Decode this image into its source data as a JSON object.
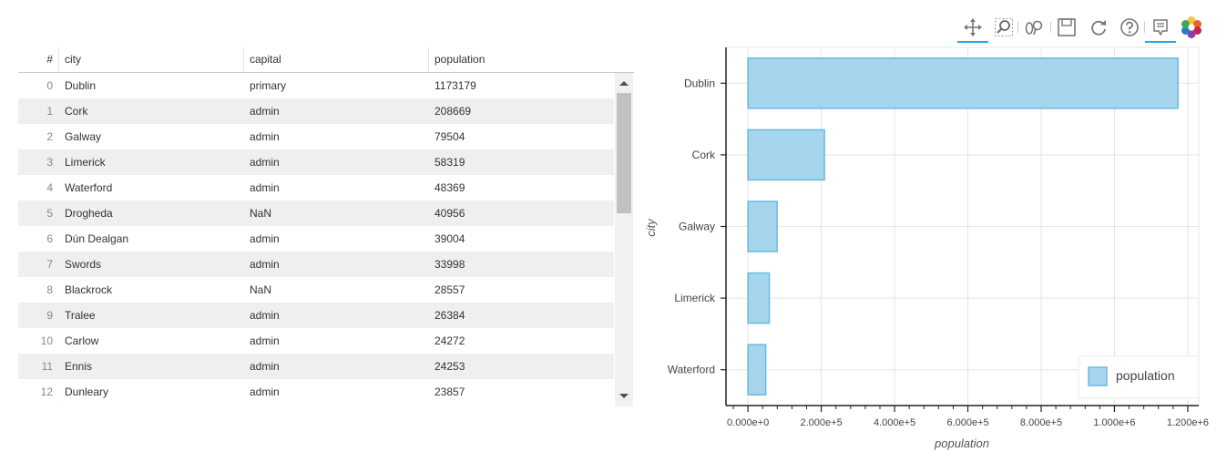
{
  "table": {
    "columns": [
      "#",
      "city",
      "capital",
      "population"
    ],
    "rows": [
      {
        "index": "0",
        "city": "Dublin",
        "capital": "primary",
        "population": "1173179"
      },
      {
        "index": "1",
        "city": "Cork",
        "capital": "admin",
        "population": "208669"
      },
      {
        "index": "2",
        "city": "Galway",
        "capital": "admin",
        "population": "79504"
      },
      {
        "index": "3",
        "city": "Limerick",
        "capital": "admin",
        "population": "58319"
      },
      {
        "index": "4",
        "city": "Waterford",
        "capital": "admin",
        "population": "48369"
      },
      {
        "index": "5",
        "city": "Drogheda",
        "capital": "NaN",
        "population": "40956"
      },
      {
        "index": "6",
        "city": "Dún Dealgan",
        "capital": "admin",
        "population": "39004"
      },
      {
        "index": "7",
        "city": "Swords",
        "capital": "admin",
        "population": "33998"
      },
      {
        "index": "8",
        "city": "Blackrock",
        "capital": "NaN",
        "population": "28557"
      },
      {
        "index": "9",
        "city": "Tralee",
        "capital": "admin",
        "population": "26384"
      },
      {
        "index": "10",
        "city": "Carlow",
        "capital": "admin",
        "population": "24272"
      },
      {
        "index": "11",
        "city": "Ennis",
        "capital": "admin",
        "population": "24253"
      },
      {
        "index": "12",
        "city": "Dunleary",
        "capital": "admin",
        "population": "23857"
      }
    ]
  },
  "toolbar": {
    "tools": [
      "pan-icon",
      "box-zoom-icon",
      "wheel-zoom-icon",
      "save-icon",
      "reset-icon",
      "help-icon",
      "hover-icon",
      "bokeh-logo-icon"
    ]
  },
  "chart_data": {
    "type": "bar",
    "orientation": "horizontal",
    "categories": [
      "Dublin",
      "Cork",
      "Galway",
      "Limerick",
      "Waterford"
    ],
    "values": [
      1173179,
      208669,
      79504,
      58319,
      48369
    ],
    "xlabel": "population",
    "ylabel": "city",
    "xlim": [
      -60000,
      1230000
    ],
    "xticks": [
      0,
      200000,
      400000,
      600000,
      800000,
      1000000,
      1200000
    ],
    "xtick_labels": [
      "0.000e+0",
      "2.000e+5",
      "4.000e+5",
      "6.000e+5",
      "8.000e+5",
      "1.000e+6",
      "1.200e+6"
    ],
    "legend": [
      {
        "label": "population"
      }
    ],
    "legend_position": "bottom-right",
    "grid": true,
    "bar_color": "#a6d6ee",
    "bar_edge_color": "#6ab9e0"
  }
}
